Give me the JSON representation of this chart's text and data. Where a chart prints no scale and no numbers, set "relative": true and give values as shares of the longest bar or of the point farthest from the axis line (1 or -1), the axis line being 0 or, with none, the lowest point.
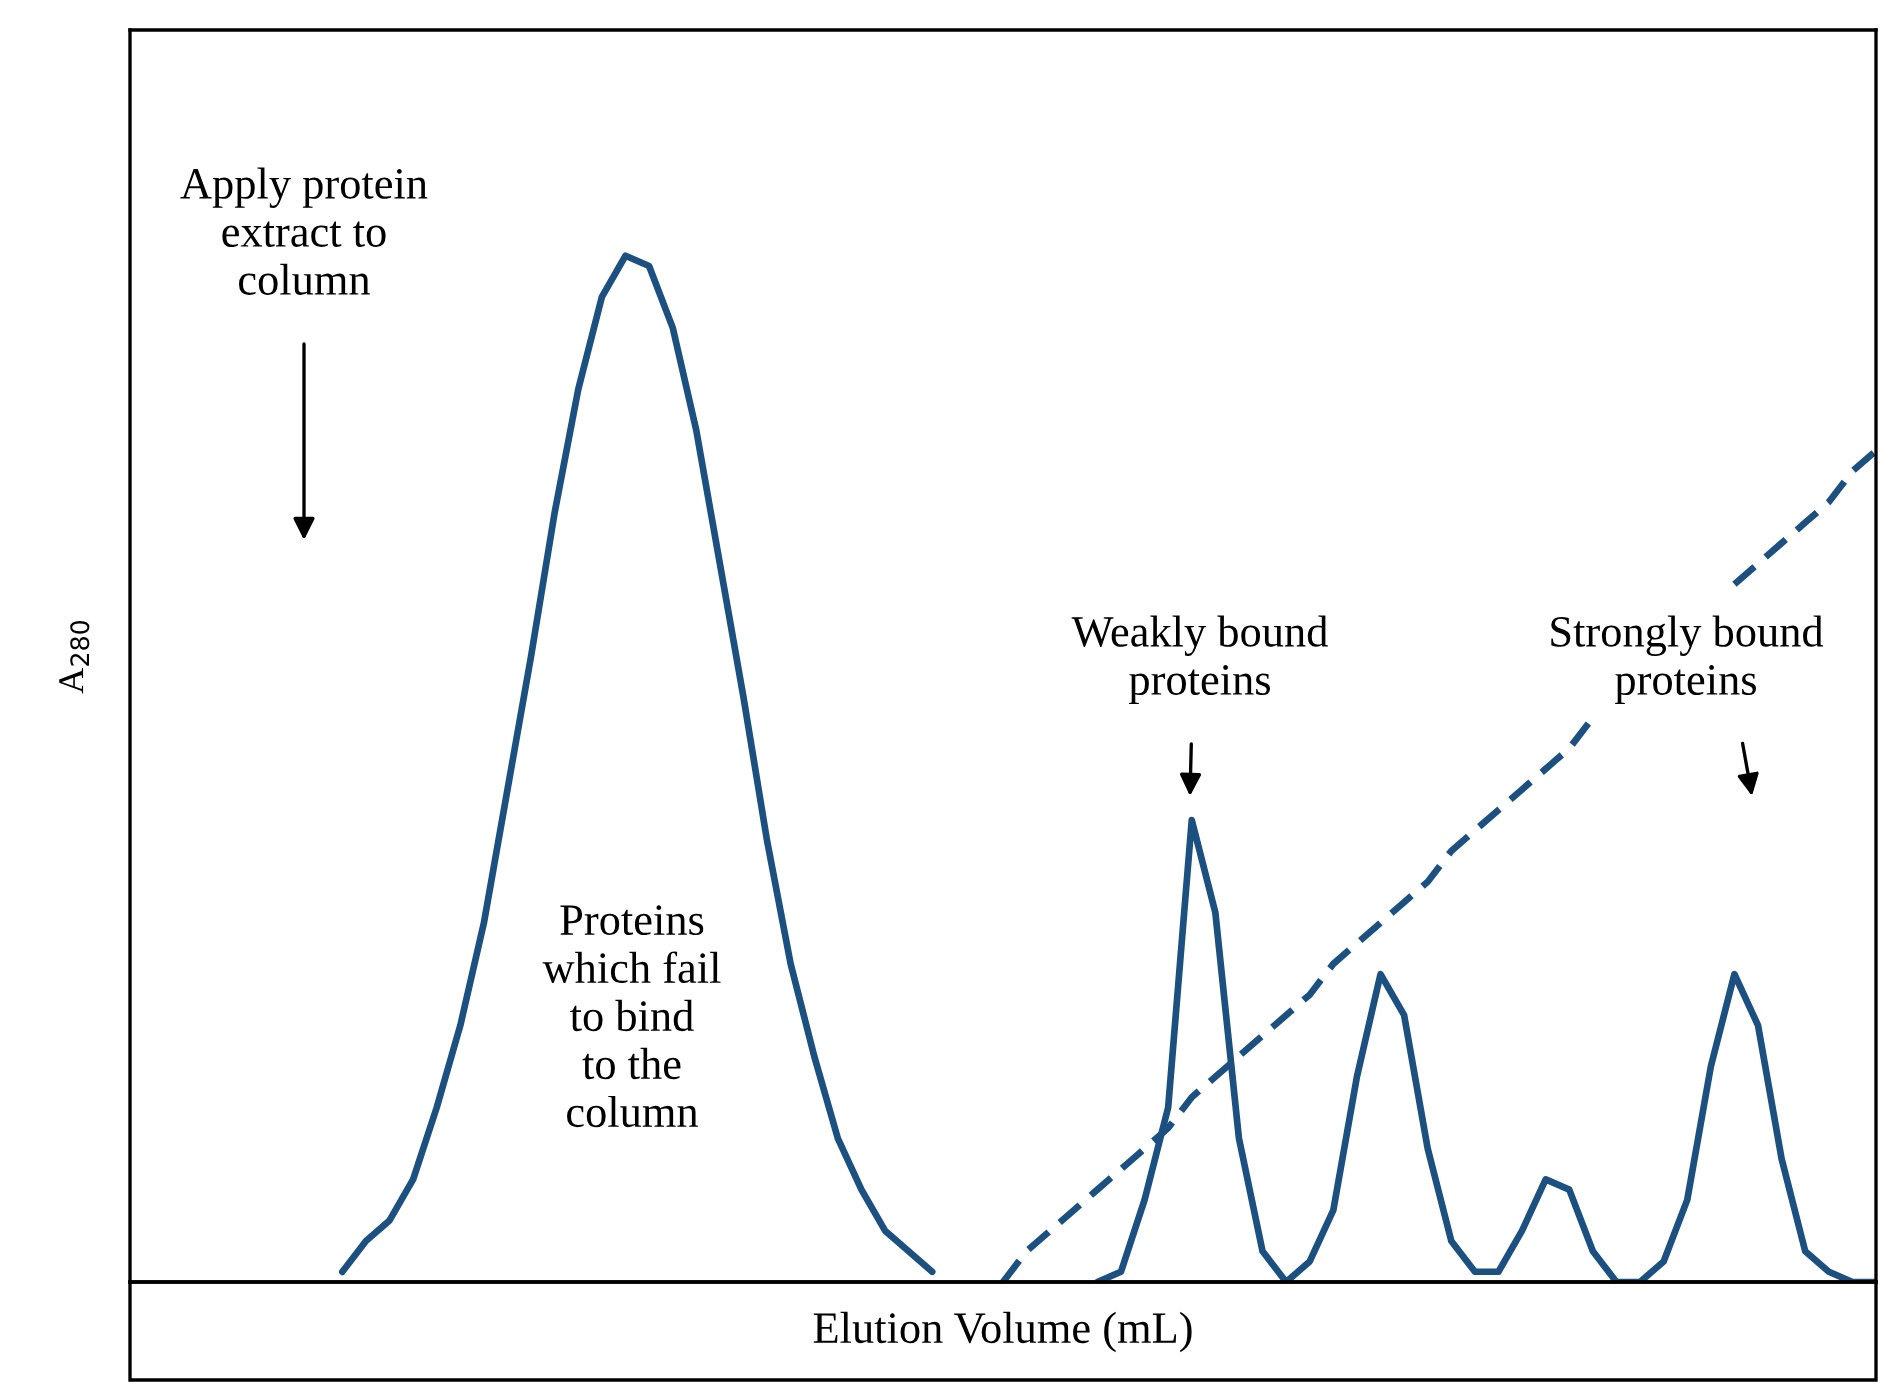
{
  "chart_data": {
    "type": "line",
    "relative": true,
    "xlabel": "Elution Volume (mL)",
    "ylabel": "A$_{280}$",
    "categories": [
      null,
      null,
      null,
      null,
      null,
      null,
      null,
      null,
      null,
      null,
      null,
      null,
      null,
      null,
      null,
      null,
      null,
      null,
      null,
      null,
      null,
      null,
      null,
      null,
      null,
      null,
      null,
      null,
      null,
      null,
      null,
      null,
      null,
      null,
      null,
      null,
      null,
      null,
      null,
      null,
      null,
      null,
      null,
      null,
      null,
      null,
      null,
      null,
      null,
      null,
      null,
      null,
      null,
      null,
      null,
      null,
      null,
      null,
      null,
      null,
      null,
      null,
      null,
      null,
      null,
      null,
      null,
      null,
      null,
      null,
      null,
      null,
      null,
      null,
      null
    ],
    "series": [
      {
        "color": "#1b5080",
        "line_style": "solid",
        "values": [
          null,
          null,
          null,
          null,
          null,
          null,
          null,
          null,
          null,
          0.01,
          0.04,
          0.06,
          0.1,
          0.17,
          0.25,
          0.35,
          0.48,
          0.61,
          0.75,
          0.87,
          0.96,
          1.0,
          0.99,
          0.93,
          0.83,
          0.7,
          0.57,
          0.43,
          0.31,
          0.22,
          0.14,
          0.09,
          0.05,
          0.03,
          0.01,
          null,
          null,
          null,
          null,
          null,
          null,
          null,
          null,
          null,
          null,
          null,
          null,
          null,
          null,
          null,
          null,
          null,
          null,
          null,
          null,
          null,
          null,
          null,
          null,
          null,
          null,
          null,
          null,
          null,
          null,
          null,
          null,
          null,
          null,
          null,
          null,
          null,
          null,
          null,
          null
        ]
      },
      {
        "color": "#1b5080",
        "line_style": "solid",
        "values": [
          null,
          null,
          null,
          null,
          null,
          null,
          null,
          null,
          null,
          null,
          null,
          null,
          null,
          null,
          null,
          null,
          null,
          null,
          null,
          null,
          null,
          null,
          null,
          null,
          null,
          null,
          null,
          null,
          null,
          null,
          null,
          null,
          null,
          null,
          null,
          null,
          null,
          null,
          null,
          null,
          null,
          0.0,
          0.01,
          0.08,
          0.17,
          0.45,
          0.36,
          0.14,
          0.03,
          0.0,
          0.02,
          0.07,
          0.2,
          0.3,
          0.26,
          0.13,
          0.04,
          0.01,
          0.01,
          0.05,
          0.1,
          0.09,
          0.03,
          0.0,
          0.0,
          0.02,
          0.08,
          0.21,
          0.3,
          0.25,
          0.12,
          0.03,
          0.01,
          0.0,
          0.0
        ]
      },
      {
        "color": "#1b5080",
        "line_style": "dashed",
        "values": [
          null,
          null,
          null,
          null,
          null,
          null,
          null,
          null,
          null,
          null,
          null,
          null,
          null,
          null,
          null,
          null,
          null,
          null,
          null,
          null,
          null,
          null,
          null,
          null,
          null,
          null,
          null,
          null,
          null,
          null,
          null,
          null,
          null,
          null,
          null,
          null,
          null,
          0.0,
          0.03,
          0.05,
          0.07,
          0.09,
          0.11,
          0.13,
          0.15,
          0.18,
          0.2,
          0.22,
          0.24,
          0.26,
          0.28,
          0.31,
          0.33,
          0.35,
          0.37,
          0.39,
          0.42,
          0.44,
          0.46,
          0.48,
          0.5,
          0.52,
          0.55,
          null,
          null,
          null,
          null,
          null,
          null,
          null,
          null,
          null,
          null,
          null,
          null
        ]
      },
      {
        "color": "#1b5080",
        "line_style": "dashed",
        "values": [
          null,
          null,
          null,
          null,
          null,
          null,
          null,
          null,
          null,
          null,
          null,
          null,
          null,
          null,
          null,
          null,
          null,
          null,
          null,
          null,
          null,
          null,
          null,
          null,
          null,
          null,
          null,
          null,
          null,
          null,
          null,
          null,
          null,
          null,
          null,
          null,
          null,
          null,
          null,
          null,
          null,
          null,
          null,
          null,
          null,
          null,
          null,
          null,
          null,
          null,
          null,
          null,
          null,
          null,
          null,
          null,
          null,
          null,
          null,
          null,
          null,
          null,
          null,
          null,
          null,
          null,
          null,
          null,
          0.68,
          0.7,
          0.72,
          0.74,
          0.76,
          0.79,
          0.81
        ]
      }
    ],
    "annotations": [
      "Apply protein\nextract to\ncolumn",
      "Proteins\nwhich fail\nto bind\nto the\ncolumn",
      "Weakly bound\nproteins",
      "Strongly bound\nproteins"
    ]
  }
}
